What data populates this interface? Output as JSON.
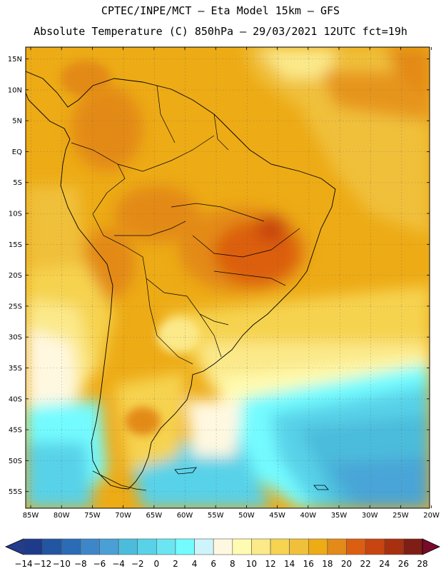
{
  "title_line1": "CPTEC/INPE/MCT –  Eta Model 15km – GFS",
  "title_line2": "Absolute Temperature (C) 850hPa – 29/03/2021 12UTC fct=19h",
  "lat_labels": [
    "15N",
    "10N",
    "5N",
    "EQ",
    "5S",
    "10S",
    "15S",
    "20S",
    "25S",
    "30S",
    "35S",
    "40S",
    "45S",
    "50S",
    "55S"
  ],
  "lon_labels": [
    "85W",
    "80W",
    "75W",
    "70W",
    "65W",
    "60W",
    "55W",
    "50W",
    "45W",
    "40W",
    "35W",
    "30W",
    "25W",
    "20W"
  ],
  "colorbar": {
    "labels": [
      "-14",
      "-12",
      "-10",
      "-8",
      "-6",
      "-4",
      "-2",
      "0",
      "2",
      "4",
      "6",
      "8",
      "10",
      "12",
      "14",
      "16",
      "18",
      "20",
      "22",
      "24",
      "26",
      "28"
    ],
    "colors": [
      "#1e3a8a",
      "#2356a2",
      "#2b6cb6",
      "#3d86c8",
      "#4a9fd6",
      "#4cbcdc",
      "#58d2e8",
      "#6be5f2",
      "#73fbff",
      "#cdf4fb",
      "#fff8e0",
      "#fffbb0",
      "#fbe98a",
      "#f6d350",
      "#f0c03a",
      "#edab16",
      "#e38a18",
      "#dc5e10",
      "#c84410",
      "#a8300e",
      "#7e1e14"
    ],
    "under_color": "#243c8c",
    "over_color": "#7a0a2a"
  }
}
